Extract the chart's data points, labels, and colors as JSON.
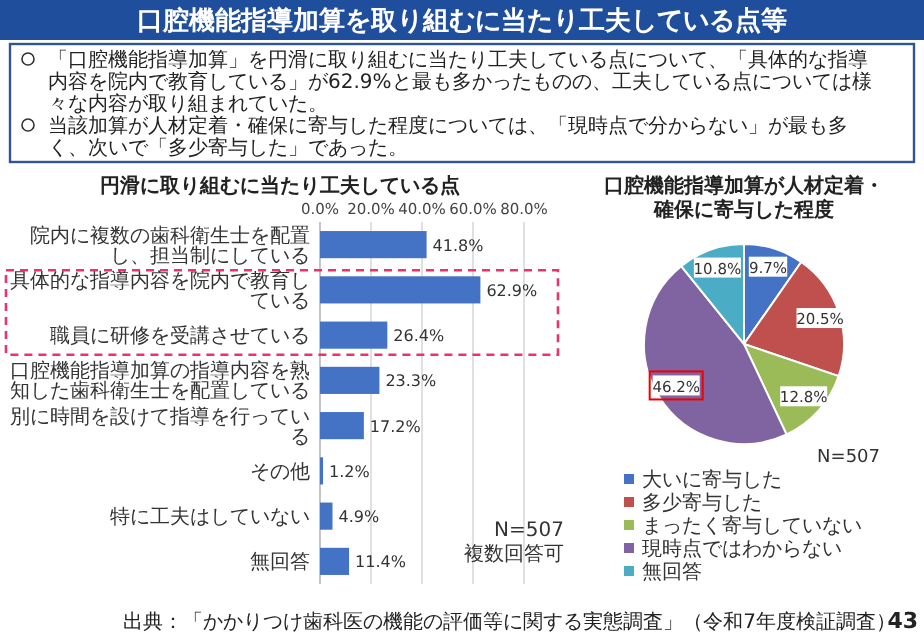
{
  "chart_data": [
    {
      "type": "other",
      "title": "口腔機能指導加算を取り組むに当たり工夫している点等",
      "annotations": [
        "「口腔機能指導加算」を円滑に取り組むに当たり工夫している点について、「具体的な指導内容を院内で教育している」が62.9%と最も多かったものの、工夫している点については様々な内容が取り組まれていた。",
        "当該加算が人材定着・確保に寄与した程度については、「現時点で分からない」が最も多く、次いで「多少寄与した」であった。",
        "出典：「かかりつけ歯科医の機能の評価等に関する実態調査」（令和7年度検証調査）",
        "43"
      ]
    },
    {
      "type": "bar",
      "orientation": "horizontal",
      "title": "円滑に取り組むに当たり工夫している点",
      "categories": [
        "院内に複数の歯科衛生士を配置し、担当制にしている",
        "具体的な指導内容を院内で教育している",
        "職員に研修を受講させている",
        "口腔機能指導加算の指導内容を熟知した歯科衛生士を配置している",
        "別に時間を設けて指導を行っている",
        "その他",
        "特に工夫はしていない",
        "無回答"
      ],
      "values": [
        41.8,
        62.9,
        26.4,
        23.3,
        17.2,
        1.2,
        4.9,
        11.4
      ],
      "value_labels": [
        "41.8%",
        "62.9%",
        "26.4%",
        "23.3%",
        "17.2%",
        "1.2%",
        "4.9%",
        "11.4%"
      ],
      "color": "#4472c4",
      "xlim": [
        0,
        80
      ],
      "xticks": [
        {
          "value": 0,
          "label": "0.0%"
        },
        {
          "value": 20,
          "label": "20.0%"
        },
        {
          "value": 40,
          "label": "40.0%"
        },
        {
          "value": 60,
          "label": "60.0%"
        },
        {
          "value": 80,
          "label": "80.0%"
        }
      ],
      "grid": "x",
      "annotations": [
        "N=507",
        "複数回答可"
      ]
    },
    {
      "type": "pie",
      "title": "口腔機能指導加算が人材定着・確保に寄与した程度",
      "categories": [
        "大いに寄与した",
        "多少寄与した",
        "まったく寄与していない",
        "現時点ではわからない",
        "無回答"
      ],
      "values": [
        9.7,
        20.5,
        12.8,
        46.2,
        10.8
      ],
      "value_labels": [
        "9.7%",
        "20.5%",
        "12.8%",
        "46.2%",
        "10.8%"
      ],
      "colors": [
        "#4472c4",
        "#c0504d",
        "#9bbb59",
        "#8064a2",
        "#4bacc6"
      ],
      "legend": "bottom",
      "annotations": [
        "N=507"
      ]
    }
  ]
}
